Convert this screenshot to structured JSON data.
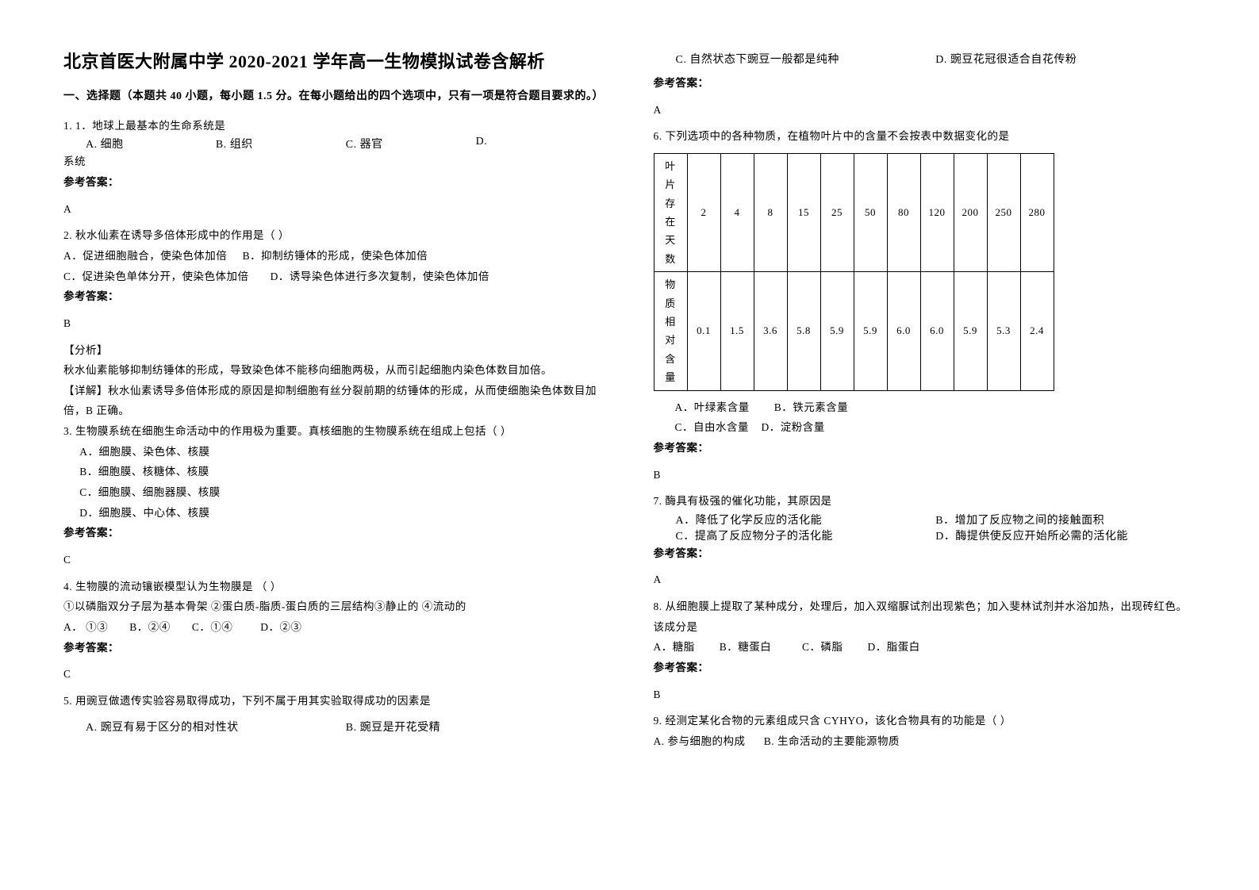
{
  "title": "北京首医大附属中学 2020-2021 学年高一生物模拟试卷含解析",
  "section": "一、选择题（本题共 40 小题，每小题 1.5 分。在每小题给出的四个选项中，只有一项是符合题目要求的。）",
  "q1": {
    "num": "1. 1．地球上最基本的生命系统是",
    "a": "A. 细胞",
    "b": "B. 组织",
    "c": "C. 器官",
    "d": "D.",
    "d2": "系统",
    "ans_label": "参考答案：",
    "ans": "A"
  },
  "q2": {
    "num": "2. 秋水仙素在诱导多倍体形成中的作用是（        ）",
    "a": "A．促进细胞融合，使染色体加倍",
    "b": "B．抑制纺锤体的形成，使染色体加倍",
    "c": "C．促进染色单体分开，使染色体加倍",
    "d": "D．诱导染色体进行多次复制，使染色体加倍",
    "ans_label": "参考答案：",
    "ans": "B",
    "analysis_label": "【分析】",
    "analysis_1": "秋水仙素能够抑制纺锤体的形成，导致染色体不能移向细胞两极，从而引起细胞内染色体数目加倍。",
    "analysis_2": "【详解】秋水仙素诱导多倍体形成的原因是抑制细胞有丝分裂前期的纺锤体的形成，从而使细胞染色体数目加倍，B 正确。"
  },
  "q3": {
    "num": "3. 生物膜系统在细胞生命活动中的作用极为重要。真核细胞的生物膜系统在组成上包括（        ）",
    "a": "A．细胞膜、染色体、核膜",
    "b": "B．细胞膜、核糖体、核膜",
    "c": "C．细胞膜、细胞器膜、核膜",
    "d": "D．细胞膜、中心体、核膜",
    "ans_label": "参考答案：",
    "ans": "C"
  },
  "q4": {
    "num": "4. 生物膜的流动镶嵌模型认为生物膜是  （          ）",
    "line2": "①以磷脂双分子层为基本骨架  ②蛋白质-脂质-蛋白质的三层结构③静止的     ④流动的",
    "a": "A． ①③",
    "b": "B．②④",
    "c": "C．①④",
    "d": "D．②③",
    "ans_label": "参考答案：",
    "ans": "C"
  },
  "q5": {
    "num": "5. 用豌豆做遗传实验容易取得成功，下列不属于用其实验取得成功的因素是",
    "a": "A.    豌豆有易于区分的相对性状",
    "b": "B.    豌豆是开花受精",
    "c": "C.    自然状态下豌豆一般都是纯种",
    "d": "D.    豌豆花冠很适合自花传粉",
    "ans_label": "参考答案：",
    "ans": "A"
  },
  "q6": {
    "num": "6. 下列选项中的各种物质，在植物叶片中的含量不会按表中数据变化的是",
    "table": {
      "row1_label": "叶片存在天数",
      "row1": [
        "2",
        "4",
        "8",
        "15",
        "25",
        "50",
        "80",
        "120",
        "200",
        "250",
        "280"
      ],
      "row2_label": "物质相对含量",
      "row2": [
        "0.1",
        "1.5",
        "3.6",
        "5.8",
        "5.9",
        "5.9",
        "6.0",
        "6.0",
        "5.9",
        "5.3",
        "2.4"
      ]
    },
    "a": "A．叶绿素含量",
    "b": "B．铁元素含量",
    "c": "C．自由水含量",
    "d": "D．淀粉含量",
    "ans_label": "参考答案：",
    "ans": "B"
  },
  "q7": {
    "num": "7. 酶具有极强的催化功能，其原因是",
    "a": "A．降低了化学反应的活化能",
    "b": "B．增加了反应物之间的接触面积",
    "c": "C．提高了反应物分子的活化能",
    "d": "D．酶提供使反应开始所必需的活化能",
    "ans_label": "参考答案：",
    "ans": "A"
  },
  "q8": {
    "num": "8. 从细胞膜上提取了某种成分，处理后，加入双缩脲试剂出现紫色；加入斐林试剂并水浴加热，出现砖红色。该成分是",
    "a": "A．糖脂",
    "b": "B．糖蛋白",
    "c": "C．磷脂",
    "d": "D．脂蛋白",
    "ans_label": "参考答案：",
    "ans": "B"
  },
  "q9": {
    "num": "9. 经测定某化合物的元素组成只含 CYHYO，该化合物具有的功能是（        ）",
    "a": "A. 参与细胞的构成",
    "b": "B. 生命活动的主要能源物质"
  }
}
